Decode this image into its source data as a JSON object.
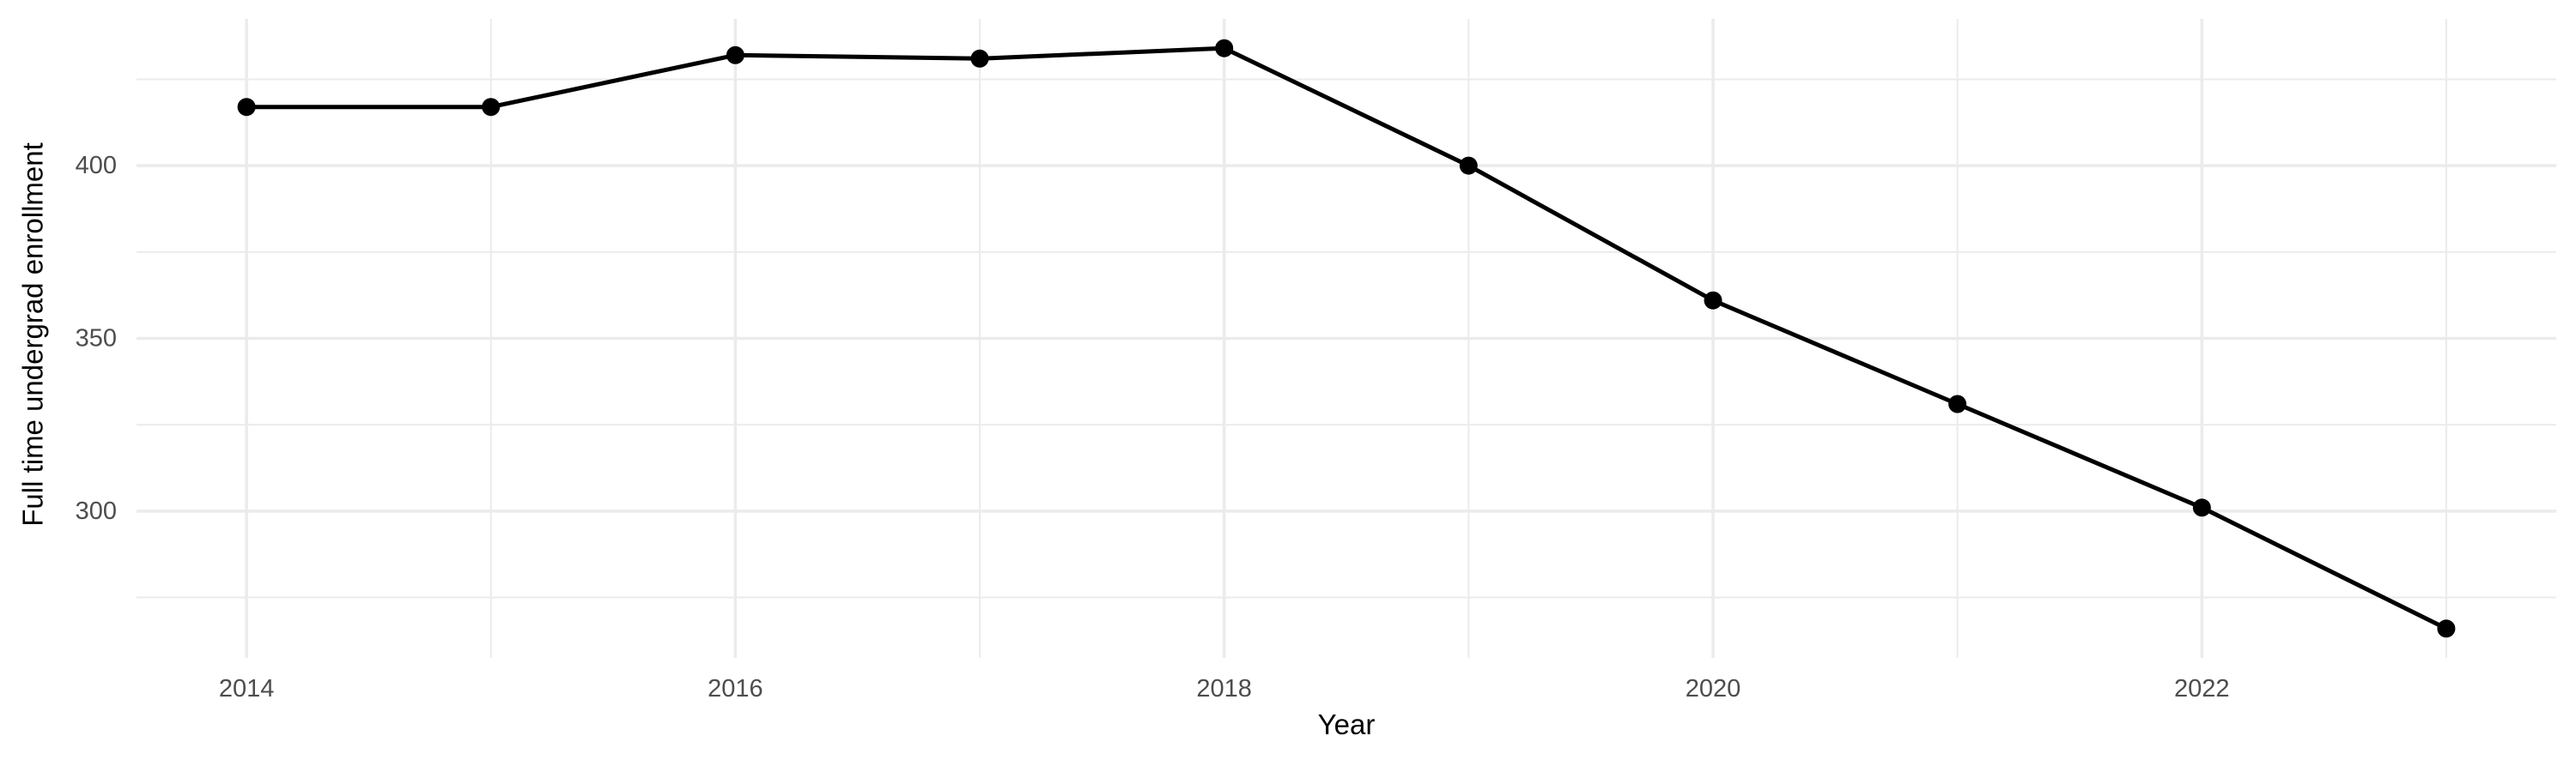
{
  "figure": {
    "background_color": "#ffffff"
  },
  "chart_data": {
    "type": "line",
    "title": "",
    "xlabel": "Year",
    "ylabel": "Full time undergrad enrollment",
    "series": [
      {
        "name": "Full time undergrad enrollment",
        "x": [
          2014,
          2015,
          2016,
          2017,
          2018,
          2019,
          2020,
          2021,
          2022,
          2023
        ],
        "values": [
          417,
          417,
          432,
          431,
          434,
          400,
          361,
          331,
          301,
          266
        ]
      }
    ],
    "x_ticks": [
      2014,
      2016,
      2018,
      2020,
      2022
    ],
    "x_minor_gridlines": [
      2015,
      2017,
      2019,
      2021,
      2023
    ],
    "y_ticks": [
      300,
      350,
      400
    ],
    "y_minor_gridlines": [
      275,
      325,
      375,
      425
    ],
    "xlim": [
      2013.55,
      2023.45
    ],
    "ylim": [
      257.5,
      442.5
    ],
    "grid": "major+minor",
    "legend_position": "none",
    "style": {
      "line_color": "#000000",
      "point_color": "#000000",
      "grid_color": "#ebebeb",
      "tick_label_color": "#4d4d4d",
      "axis_title_color": "#000000",
      "panel_background": "#ffffff"
    }
  }
}
